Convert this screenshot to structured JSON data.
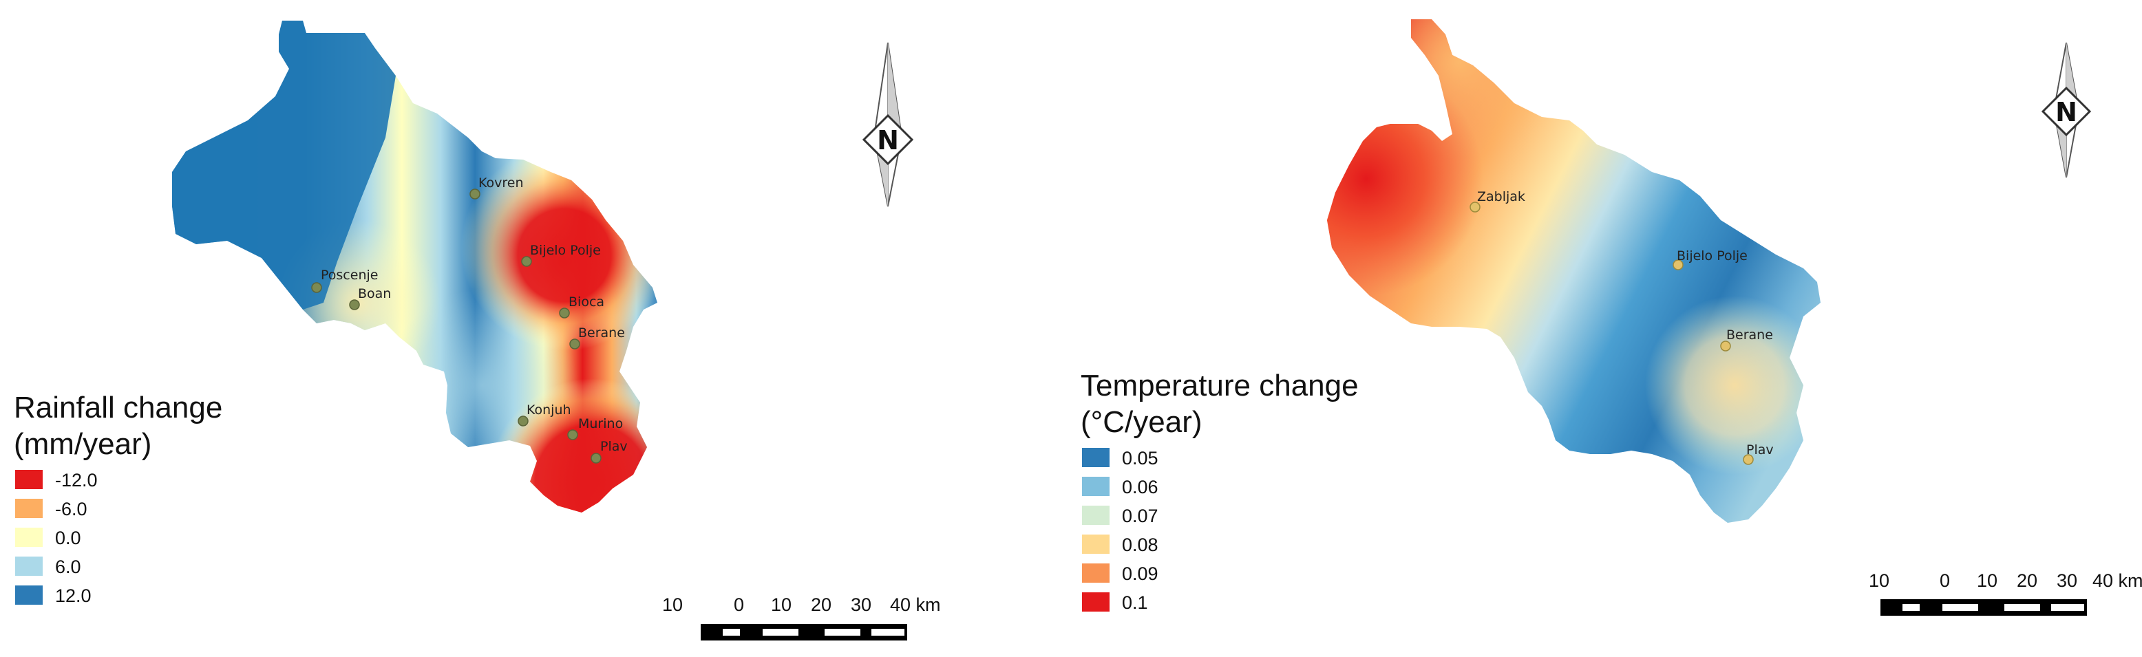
{
  "panels": {
    "rainfall": {
      "title_line1": "Rainfall change",
      "title_line2": "(mm/year)",
      "north_letter": "N",
      "legend": [
        {
          "label": "-12.0",
          "color": "#e41a1c"
        },
        {
          "label": "-6.0",
          "color": "#fdae61"
        },
        {
          "label": "0.0",
          "color": "#ffffbf"
        },
        {
          "label": "6.0",
          "color": "#abd9e9"
        },
        {
          "label": "12.0",
          "color": "#2c7bb6"
        }
      ],
      "scale_ticks": [
        "10",
        "0",
        "10",
        "20",
        "30",
        "40 km"
      ],
      "places": [
        {
          "name": "Kovren"
        },
        {
          "name": "Bijelo Polje"
        },
        {
          "name": "Poscenje"
        },
        {
          "name": "Boan"
        },
        {
          "name": "Bioca"
        },
        {
          "name": "Berane"
        },
        {
          "name": "Konjuh"
        },
        {
          "name": "Murino"
        },
        {
          "name": "Plav"
        }
      ],
      "point_color": "#7d8a52"
    },
    "temperature": {
      "title_line1": "Temperature change",
      "title_line2": "(°C/year)",
      "north_letter": "N",
      "legend": [
        {
          "label": "0.05",
          "color": "#2c7bb6"
        },
        {
          "label": "0.06",
          "color": "#7fbfdd"
        },
        {
          "label": "0.07",
          "color": "#d4ecd2"
        },
        {
          "label": "0.08",
          "color": "#fed98e"
        },
        {
          "label": "0.09",
          "color": "#f99353"
        },
        {
          "label": "0.1",
          "color": "#e41a1c"
        }
      ],
      "scale_ticks": [
        "10",
        "0",
        "10",
        "20",
        "30",
        "40 km"
      ],
      "places": [
        {
          "name": "Zabljak"
        },
        {
          "name": "Bijelo Polje"
        },
        {
          "name": "Berane"
        },
        {
          "name": "Plav"
        }
      ],
      "point_color": "#e3c26a"
    }
  }
}
